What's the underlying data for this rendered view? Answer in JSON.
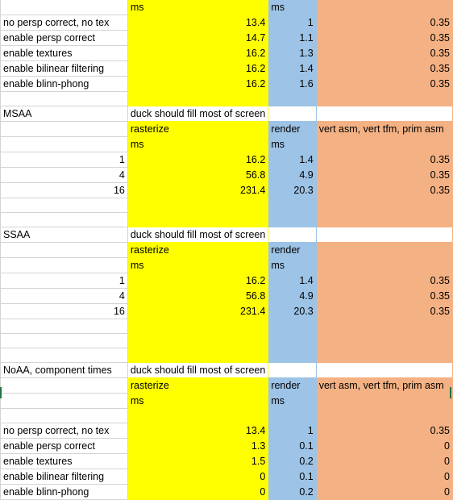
{
  "rows": [
    [
      "",
      "ms",
      "ms",
      ""
    ],
    [
      "no persp correct, no tex",
      "13.4",
      "1",
      "0.35"
    ],
    [
      "enable persp correct",
      "14.7",
      "1.1",
      "0.35"
    ],
    [
      "enable textures",
      "16.2",
      "1.3",
      "0.35"
    ],
    [
      "enable bilinear filtering",
      "16.2",
      "1.4",
      "0.35"
    ],
    [
      "enable blinn-phong",
      "16.2",
      "1.6",
      "0.35"
    ],
    [
      "",
      "",
      "",
      ""
    ],
    [
      "MSAA",
      "duck should fill most of screen",
      "",
      ""
    ],
    [
      "",
      "rasterize",
      "render",
      "vert asm, vert tfm, prim asm"
    ],
    [
      "",
      "ms",
      "ms",
      ""
    ],
    [
      "1",
      "16.2",
      "1.4",
      "0.35"
    ],
    [
      "4",
      "56.8",
      "4.9",
      "0.35"
    ],
    [
      "16",
      "231.4",
      "20.3",
      "0.35"
    ],
    [
      "",
      "",
      "",
      ""
    ],
    [
      "",
      "",
      "",
      ""
    ],
    [
      "SSAA",
      "duck should fill most of screen",
      "",
      ""
    ],
    [
      "",
      "rasterize",
      "render",
      ""
    ],
    [
      "",
      "ms",
      "ms",
      ""
    ],
    [
      "1",
      "16.2",
      "1.4",
      "0.35"
    ],
    [
      "4",
      "56.8",
      "4.9",
      "0.35"
    ],
    [
      "16",
      "231.4",
      "20.3",
      "0.35"
    ],
    [
      "",
      "",
      "",
      ""
    ],
    [
      "",
      "",
      "",
      ""
    ],
    [
      "",
      "",
      "",
      ""
    ],
    [
      "NoAA, component times",
      "duck should fill most of screen",
      "",
      ""
    ],
    [
      "",
      "rasterize",
      "render",
      "vert asm, vert tfm, prim asm"
    ],
    [
      "",
      "ms",
      "ms",
      ""
    ],
    [
      "",
      "",
      "",
      ""
    ],
    [
      "no persp correct, no tex",
      "13.4",
      "1",
      "0.35"
    ],
    [
      "enable persp correct",
      "1.3",
      "0.1",
      "0"
    ],
    [
      "enable textures",
      "1.5",
      "0.2",
      "0"
    ],
    [
      "enable bilinear filtering",
      "0",
      "0.1",
      "0"
    ],
    [
      "enable blinn-phong",
      "0",
      "0.2",
      "0"
    ]
  ],
  "colors": {
    "yellow": "#ffff00",
    "blue": "#9dc3e6",
    "orange": "#f4b183",
    "gridline": "#d4d4d4"
  }
}
